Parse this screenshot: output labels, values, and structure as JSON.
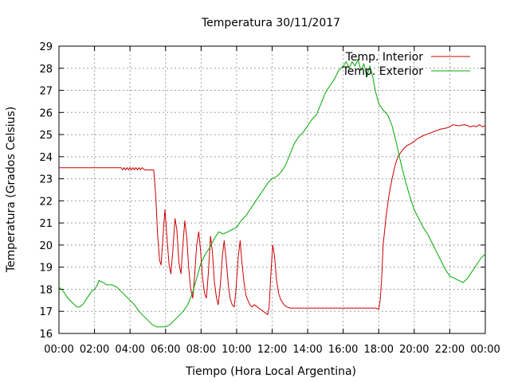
{
  "chart_data": {
    "type": "line",
    "title": "Temperatura 30/11/2017",
    "xlabel": "Tiempo (Hora Local Argentina)",
    "ylabel": "Temperatura (Grados Celsius)",
    "xlim": [
      "00:00",
      "24:00"
    ],
    "ylim": [
      16,
      29
    ],
    "grid": true,
    "legend_position": "top-right",
    "x_ticks": [
      "00:00",
      "02:00",
      "04:00",
      "06:00",
      "08:00",
      "10:00",
      "12:00",
      "14:00",
      "16:00",
      "18:00",
      "20:00",
      "22:00",
      "00:00"
    ],
    "y_ticks": [
      16,
      17,
      18,
      19,
      20,
      21,
      22,
      23,
      24,
      25,
      26,
      27,
      28,
      29
    ],
    "series": [
      {
        "name": "Temp. Interior",
        "color": "#cc0000",
        "points": [
          [
            "00:00",
            23.5
          ],
          [
            "01:00",
            23.5
          ],
          [
            "02:00",
            23.5
          ],
          [
            "03:00",
            23.5
          ],
          [
            "03:30",
            23.5
          ],
          [
            "03:35",
            23.4
          ],
          [
            "03:40",
            23.5
          ],
          [
            "03:45",
            23.4
          ],
          [
            "03:50",
            23.5
          ],
          [
            "03:55",
            23.4
          ],
          [
            "04:00",
            23.5
          ],
          [
            "04:05",
            23.4
          ],
          [
            "04:10",
            23.5
          ],
          [
            "04:15",
            23.4
          ],
          [
            "04:20",
            23.5
          ],
          [
            "04:25",
            23.4
          ],
          [
            "04:30",
            23.5
          ],
          [
            "04:35",
            23.4
          ],
          [
            "04:40",
            23.5
          ],
          [
            "04:50",
            23.4
          ],
          [
            "05:00",
            23.4
          ],
          [
            "05:20",
            23.4
          ],
          [
            "05:27",
            22.2
          ],
          [
            "05:33",
            20.5
          ],
          [
            "05:40",
            19.3
          ],
          [
            "05:45",
            19.1
          ],
          [
            "05:52",
            20.5
          ],
          [
            "05:58",
            21.6
          ],
          [
            "06:05",
            20.3
          ],
          [
            "06:12",
            19.1
          ],
          [
            "06:18",
            18.7
          ],
          [
            "06:25",
            19.8
          ],
          [
            "06:32",
            21.2
          ],
          [
            "06:38",
            20.7
          ],
          [
            "06:45",
            19.2
          ],
          [
            "06:52",
            18.7
          ],
          [
            "06:58",
            19.9
          ],
          [
            "07:05",
            21.1
          ],
          [
            "07:12",
            20.3
          ],
          [
            "07:18",
            19.0
          ],
          [
            "07:25",
            18.0
          ],
          [
            "07:32",
            17.6
          ],
          [
            "07:38",
            18.6
          ],
          [
            "07:45",
            20.0
          ],
          [
            "07:52",
            20.6
          ],
          [
            "07:58",
            19.8
          ],
          [
            "08:05",
            18.5
          ],
          [
            "08:12",
            17.8
          ],
          [
            "08:18",
            17.6
          ],
          [
            "08:25",
            18.8
          ],
          [
            "08:32",
            20.4
          ],
          [
            "08:38",
            19.7
          ],
          [
            "08:45",
            18.3
          ],
          [
            "08:52",
            17.6
          ],
          [
            "08:58",
            17.3
          ],
          [
            "09:05",
            18.2
          ],
          [
            "09:12",
            19.5
          ],
          [
            "09:18",
            20.2
          ],
          [
            "09:25",
            19.3
          ],
          [
            "09:32",
            18.2
          ],
          [
            "09:38",
            17.6
          ],
          [
            "09:45",
            17.3
          ],
          [
            "09:52",
            17.2
          ],
          [
            "09:58",
            18.0
          ],
          [
            "10:05",
            19.4
          ],
          [
            "10:12",
            20.2
          ],
          [
            "10:18",
            19.2
          ],
          [
            "10:25",
            18.3
          ],
          [
            "10:32",
            17.7
          ],
          [
            "10:38",
            17.5
          ],
          [
            "10:45",
            17.3
          ],
          [
            "10:52",
            17.2
          ],
          [
            "11:00",
            17.3
          ],
          [
            "11:10",
            17.2
          ],
          [
            "11:20",
            17.1
          ],
          [
            "11:30",
            17.0
          ],
          [
            "11:40",
            16.9
          ],
          [
            "11:45",
            16.85
          ],
          [
            "11:50",
            17.2
          ],
          [
            "11:55",
            18.5
          ],
          [
            "12:02",
            20.0
          ],
          [
            "12:08",
            19.5
          ],
          [
            "12:15",
            18.4
          ],
          [
            "12:22",
            17.8
          ],
          [
            "12:30",
            17.5
          ],
          [
            "12:40",
            17.3
          ],
          [
            "12:50",
            17.2
          ],
          [
            "13:00",
            17.15
          ],
          [
            "14:00",
            17.15
          ],
          [
            "15:00",
            17.15
          ],
          [
            "16:00",
            17.15
          ],
          [
            "17:00",
            17.15
          ],
          [
            "17:30",
            17.15
          ],
          [
            "17:50",
            17.15
          ],
          [
            "18:00",
            17.1
          ],
          [
            "18:05",
            17.5
          ],
          [
            "18:10",
            18.5
          ],
          [
            "18:15",
            20.0
          ],
          [
            "18:25",
            21.3
          ],
          [
            "18:35",
            22.3
          ],
          [
            "18:45",
            23.0
          ],
          [
            "18:55",
            23.6
          ],
          [
            "19:05",
            24.0
          ],
          [
            "19:20",
            24.3
          ],
          [
            "19:35",
            24.5
          ],
          [
            "19:50",
            24.6
          ],
          [
            "20:10",
            24.8
          ],
          [
            "20:30",
            24.95
          ],
          [
            "20:50",
            25.05
          ],
          [
            "21:10",
            25.15
          ],
          [
            "21:30",
            25.25
          ],
          [
            "21:50",
            25.3
          ],
          [
            "22:00",
            25.35
          ],
          [
            "22:10",
            25.45
          ],
          [
            "22:30",
            25.4
          ],
          [
            "22:50",
            25.45
          ],
          [
            "23:00",
            25.4
          ],
          [
            "23:10",
            25.35
          ],
          [
            "23:20",
            25.4
          ],
          [
            "23:30",
            25.35
          ],
          [
            "23:40",
            25.45
          ],
          [
            "23:50",
            25.35
          ],
          [
            "24:00",
            25.4
          ]
        ]
      },
      {
        "name": "Temp. Exterior",
        "color": "#00aa00",
        "points": [
          [
            "00:00",
            18.1
          ],
          [
            "00:15",
            17.9
          ],
          [
            "00:30",
            17.6
          ],
          [
            "00:45",
            17.4
          ],
          [
            "01:00",
            17.2
          ],
          [
            "01:10",
            17.2
          ],
          [
            "01:20",
            17.3
          ],
          [
            "01:30",
            17.5
          ],
          [
            "01:40",
            17.7
          ],
          [
            "01:50",
            17.9
          ],
          [
            "02:00",
            18.0
          ],
          [
            "02:10",
            18.2
          ],
          [
            "02:15",
            18.4
          ],
          [
            "02:30",
            18.3
          ],
          [
            "02:40",
            18.2
          ],
          [
            "03:00",
            18.2
          ],
          [
            "03:15",
            18.1
          ],
          [
            "03:30",
            17.9
          ],
          [
            "03:45",
            17.7
          ],
          [
            "04:00",
            17.5
          ],
          [
            "04:15",
            17.3
          ],
          [
            "04:30",
            17.0
          ],
          [
            "04:45",
            16.8
          ],
          [
            "05:00",
            16.6
          ],
          [
            "05:15",
            16.4
          ],
          [
            "05:30",
            16.3
          ],
          [
            "06:00",
            16.3
          ],
          [
            "06:15",
            16.4
          ],
          [
            "06:30",
            16.6
          ],
          [
            "06:45",
            16.8
          ],
          [
            "07:00",
            17.0
          ],
          [
            "07:15",
            17.3
          ],
          [
            "07:30",
            17.8
          ],
          [
            "07:45",
            18.5
          ],
          [
            "08:00",
            19.2
          ],
          [
            "08:15",
            19.6
          ],
          [
            "08:30",
            19.9
          ],
          [
            "08:45",
            20.3
          ],
          [
            "09:00",
            20.6
          ],
          [
            "09:15",
            20.5
          ],
          [
            "09:30",
            20.6
          ],
          [
            "09:45",
            20.7
          ],
          [
            "10:00",
            20.8
          ],
          [
            "10:15",
            21.1
          ],
          [
            "10:30",
            21.3
          ],
          [
            "10:45",
            21.6
          ],
          [
            "11:00",
            21.9
          ],
          [
            "11:15",
            22.2
          ],
          [
            "11:30",
            22.5
          ],
          [
            "11:45",
            22.8
          ],
          [
            "12:00",
            23.0
          ],
          [
            "12:15",
            23.1
          ],
          [
            "12:30",
            23.3
          ],
          [
            "12:45",
            23.6
          ],
          [
            "13:00",
            24.1
          ],
          [
            "13:15",
            24.6
          ],
          [
            "13:30",
            24.9
          ],
          [
            "13:45",
            25.1
          ],
          [
            "14:00",
            25.4
          ],
          [
            "14:15",
            25.7
          ],
          [
            "14:30",
            25.9
          ],
          [
            "14:45",
            26.4
          ],
          [
            "15:00",
            26.9
          ],
          [
            "15:15",
            27.2
          ],
          [
            "15:30",
            27.5
          ],
          [
            "15:45",
            27.9
          ],
          [
            "16:00",
            28.1
          ],
          [
            "16:10",
            28.3
          ],
          [
            "16:20",
            28.0
          ],
          [
            "16:30",
            28.3
          ],
          [
            "16:40",
            28.1
          ],
          [
            "16:50",
            28.4
          ],
          [
            "17:00",
            27.9
          ],
          [
            "17:10",
            28.2
          ],
          [
            "17:20",
            27.6
          ],
          [
            "17:30",
            28.1
          ],
          [
            "17:40",
            27.6
          ],
          [
            "17:50",
            26.9
          ],
          [
            "18:00",
            26.4
          ],
          [
            "18:15",
            26.1
          ],
          [
            "18:30",
            25.9
          ],
          [
            "18:45",
            25.4
          ],
          [
            "19:00",
            24.6
          ],
          [
            "19:15",
            23.7
          ],
          [
            "19:30",
            22.9
          ],
          [
            "19:45",
            22.2
          ],
          [
            "20:00",
            21.6
          ],
          [
            "20:15",
            21.2
          ],
          [
            "20:30",
            20.8
          ],
          [
            "20:45",
            20.5
          ],
          [
            "21:00",
            20.1
          ],
          [
            "21:15",
            19.7
          ],
          [
            "21:30",
            19.3
          ],
          [
            "21:45",
            18.9
          ],
          [
            "22:00",
            18.6
          ],
          [
            "22:15",
            18.5
          ],
          [
            "22:30",
            18.4
          ],
          [
            "22:45",
            18.3
          ],
          [
            "23:00",
            18.5
          ],
          [
            "23:15",
            18.8
          ],
          [
            "23:30",
            19.1
          ],
          [
            "23:45",
            19.4
          ],
          [
            "24:00",
            19.6
          ]
        ]
      }
    ]
  }
}
